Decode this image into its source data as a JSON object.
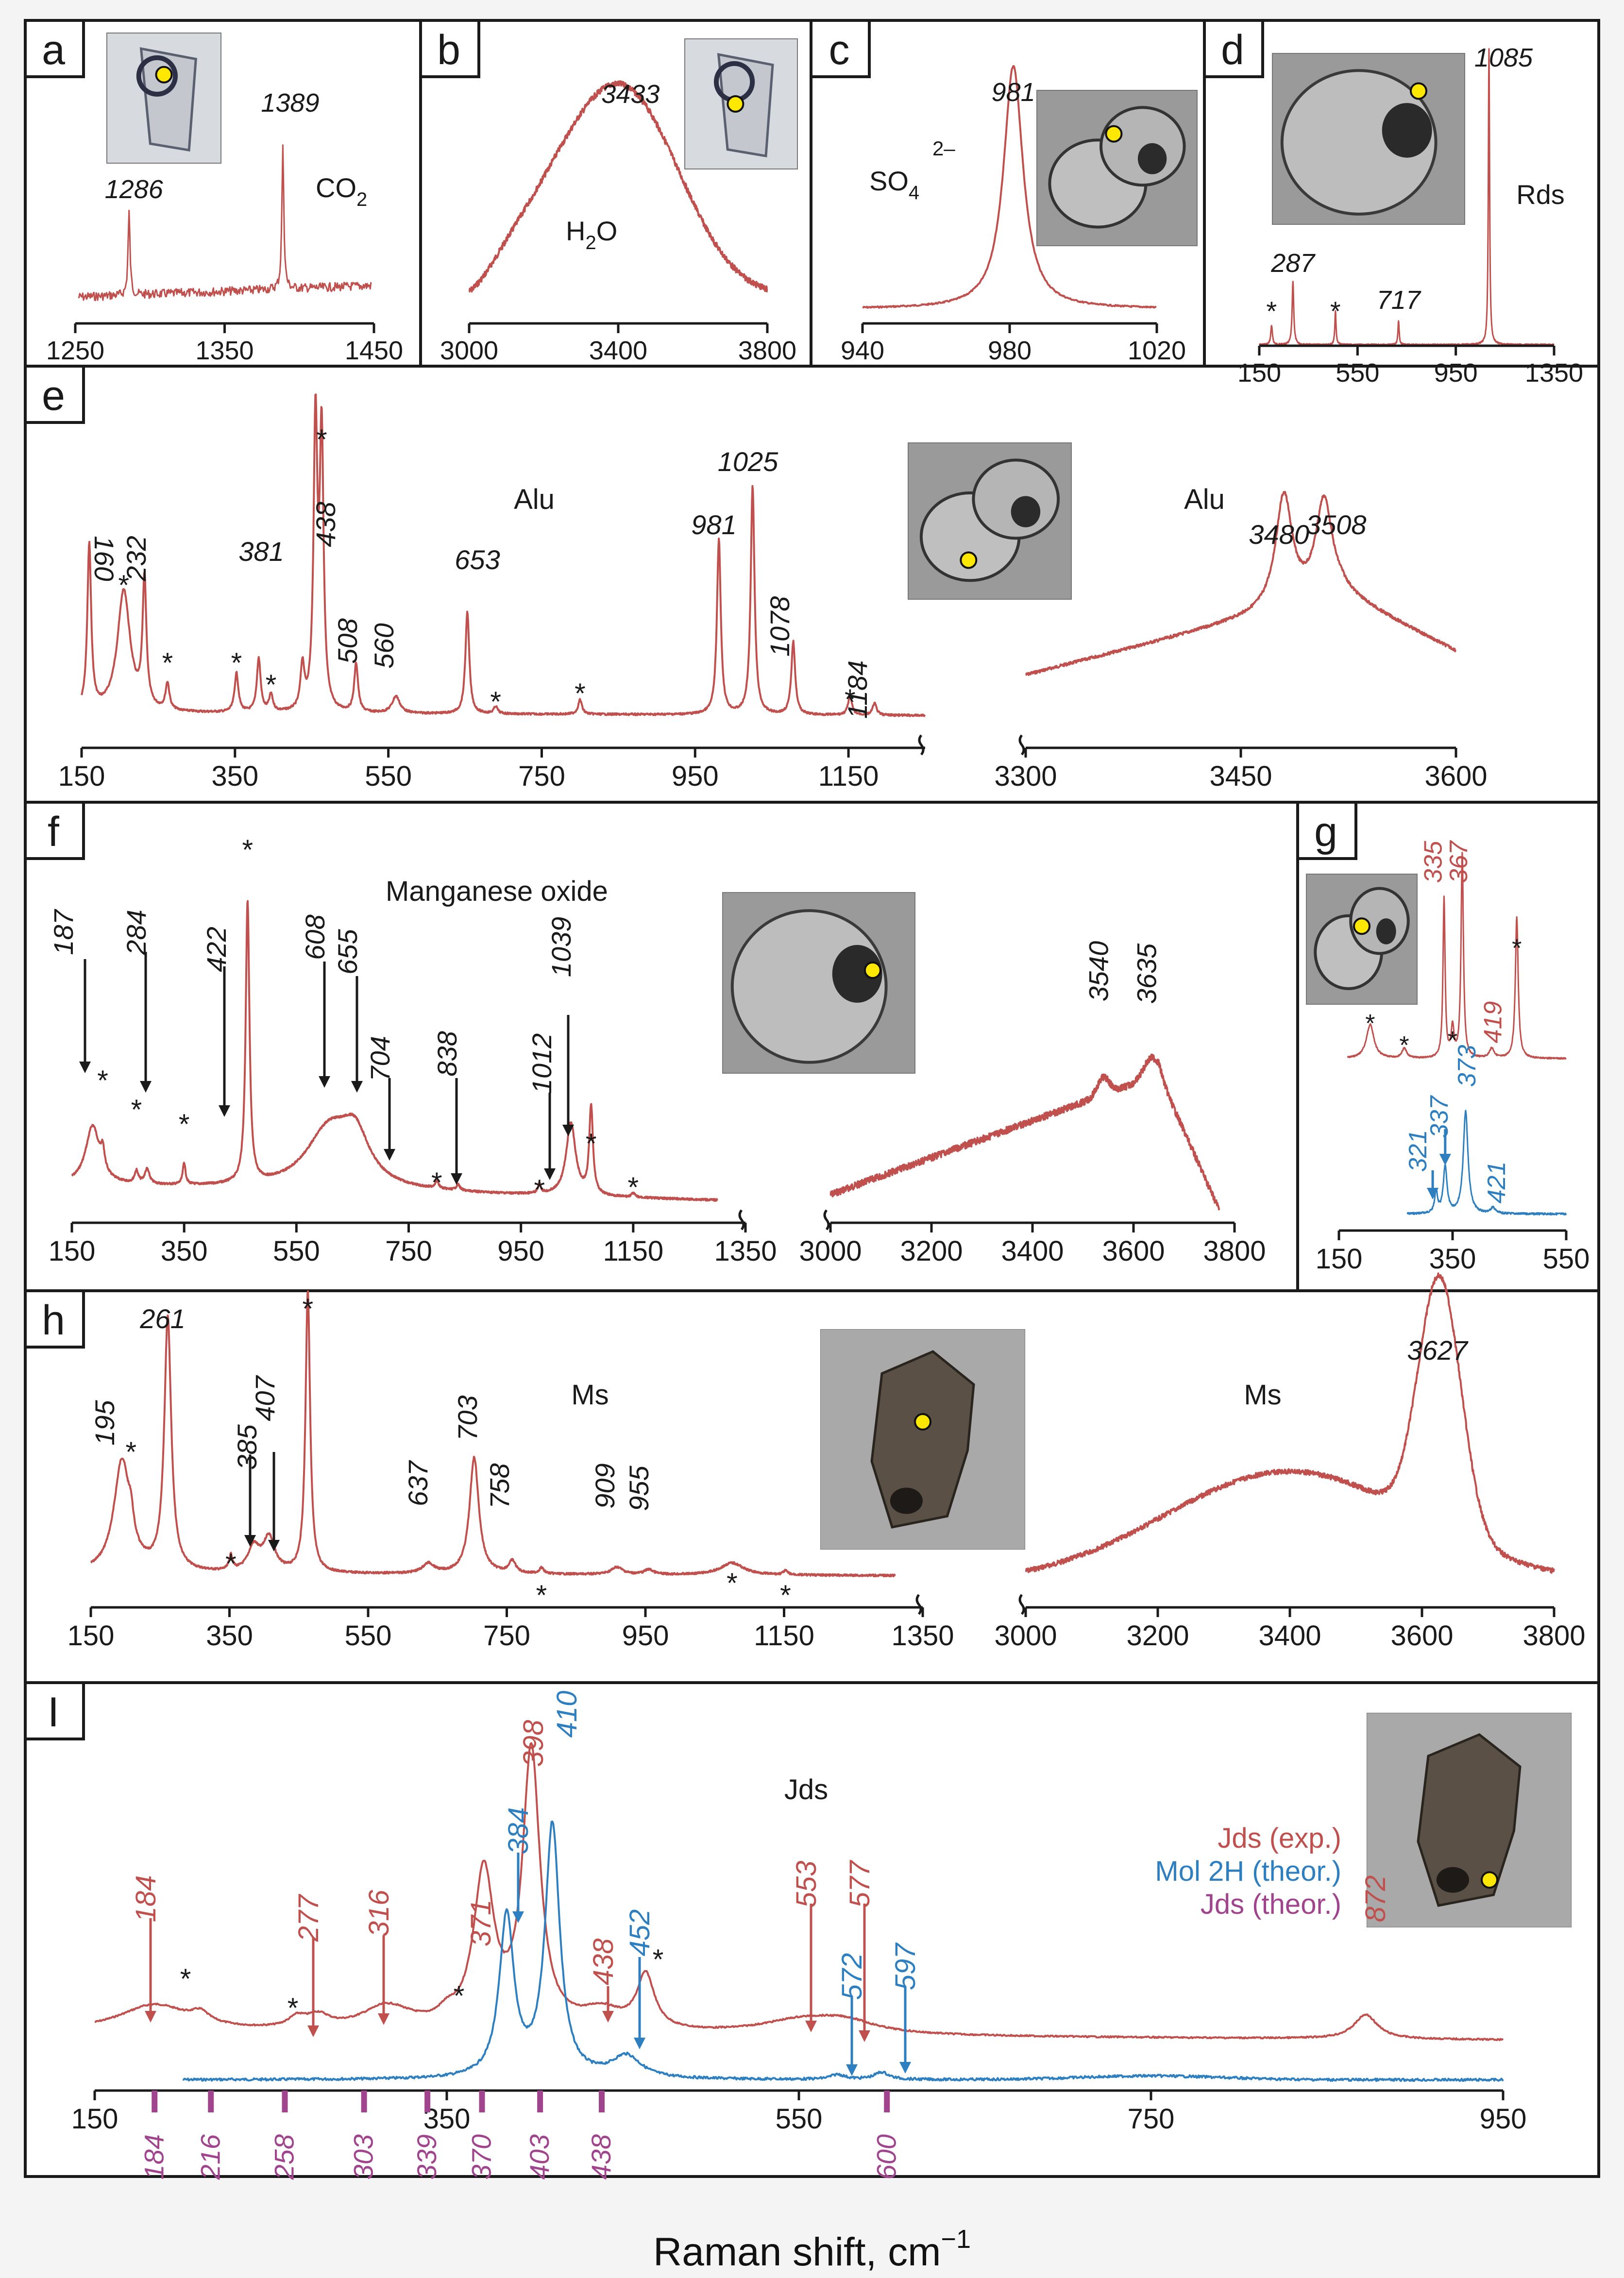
{
  "figure": {
    "xlabel": "Raman shift, cm",
    "xlabel_sup": "−1"
  },
  "colors": {
    "exp": "#c0504d",
    "blue": "#2e7fc0",
    "magenta": "#a0448e",
    "axis": "#1a1a1a"
  },
  "chart_data": [
    {
      "id": "a",
      "type": "line",
      "panel_label": "a",
      "label": "CO",
      "label_sub": "2",
      "xlim": [
        1250,
        1450
      ],
      "xticks": [
        1250,
        1350,
        1450
      ],
      "peaks": [
        {
          "x": 1286,
          "label": "1286"
        },
        {
          "x": 1389,
          "label": "1389"
        }
      ],
      "markers": [],
      "inset": {
        "image": "fluid inclusion",
        "spot": "yellow"
      }
    },
    {
      "id": "b",
      "type": "line",
      "panel_label": "b",
      "label": "H",
      "label_sub": "2",
      "label_after": "O",
      "xlim": [
        3000,
        3800
      ],
      "xticks": [
        3000,
        3400,
        3800
      ],
      "peaks": [
        {
          "x": 3433,
          "label": "3433"
        }
      ],
      "inset": {
        "image": "fluid inclusion",
        "spot": "yellow"
      }
    },
    {
      "id": "c",
      "type": "line",
      "panel_label": "c",
      "label": "SO",
      "label_sub": "4",
      "label_sup": "2–",
      "xlim": [
        940,
        1020
      ],
      "xticks": [
        940,
        980,
        1020
      ],
      "peaks": [
        {
          "x": 981,
          "label": "981"
        }
      ],
      "inset": {
        "image": "melt inclusion",
        "spot": "yellow"
      }
    },
    {
      "id": "d",
      "type": "line",
      "panel_label": "d",
      "label": "Rds",
      "xlim": [
        150,
        1350
      ],
      "xticks": [
        150,
        550,
        950,
        1350
      ],
      "peaks": [
        {
          "x": 287,
          "label": "287"
        },
        {
          "x": 717,
          "label": "717"
        },
        {
          "x": 1085,
          "label": "1085"
        }
      ],
      "markers": [
        200,
        460
      ],
      "inset": {
        "image": "inclusion",
        "spot": "yellow"
      }
    },
    {
      "id": "e",
      "type": "line",
      "panel_label": "e",
      "label": "Alu",
      "label_right": "Alu",
      "xlim": [
        150,
        1250
      ],
      "xticks": [
        150,
        350,
        550,
        750,
        950,
        1150
      ],
      "xlim_right": [
        3300,
        3600
      ],
      "xticks_right": [
        3300,
        3450,
        3600
      ],
      "peaks": [
        {
          "x": 160,
          "label": "160"
        },
        {
          "x": 232,
          "label": "232"
        },
        {
          "x": 381,
          "label": "381"
        },
        {
          "x": 438,
          "label": "438"
        },
        {
          "x": 508,
          "label": "508"
        },
        {
          "x": 560,
          "label": "560"
        },
        {
          "x": 653,
          "label": "653"
        },
        {
          "x": 981,
          "label": "981"
        },
        {
          "x": 1025,
          "label": "1025"
        },
        {
          "x": 1078,
          "label": "1078"
        },
        {
          "x": 1184,
          "label": "1184"
        }
      ],
      "peaks_right": [
        {
          "x": 3480,
          "label": "3480"
        },
        {
          "x": 3508,
          "label": "3508"
        }
      ],
      "markers": [
        205,
        262,
        352,
        397,
        463,
        690,
        800,
        1152
      ],
      "inset": {
        "image": "melt inclusion",
        "spot": "yellow"
      }
    },
    {
      "id": "f",
      "type": "line",
      "panel_label": "f",
      "label": "Manganese oxide",
      "xlim": [
        150,
        1350
      ],
      "xticks": [
        150,
        350,
        550,
        750,
        950,
        1150,
        1350
      ],
      "xlim_right": [
        3000,
        3800
      ],
      "xticks_right": [
        3000,
        3200,
        3400,
        3600,
        3800
      ],
      "peaks": [
        {
          "x": 187,
          "label": "187"
        },
        {
          "x": 284,
          "label": "284"
        },
        {
          "x": 422,
          "label": "422"
        },
        {
          "x": 608,
          "label": "608"
        },
        {
          "x": 655,
          "label": "655"
        },
        {
          "x": 704,
          "label": "704"
        },
        {
          "x": 838,
          "label": "838"
        },
        {
          "x": 1012,
          "label": "1012"
        },
        {
          "x": 1039,
          "label": "1039"
        }
      ],
      "peaks_right": [
        {
          "x": 3540,
          "label": "3540"
        },
        {
          "x": 3635,
          "label": "3635"
        }
      ],
      "markers": [
        205,
        265,
        350,
        463,
        800,
        983,
        1075,
        1150
      ],
      "inset": {
        "image": "inclusion",
        "spot": "yellow"
      }
    },
    {
      "id": "g",
      "type": "line",
      "panel_label": "g",
      "xlim": [
        150,
        550
      ],
      "xticks": [
        150,
        350,
        550
      ],
      "series": [
        {
          "name": "exp",
          "peaks": [
            {
              "x": 335,
              "label": "335"
            },
            {
              "x": 367,
              "label": "367"
            },
            {
              "x": 419,
              "label": "419"
            }
          ],
          "markers": [
            205,
            265,
            350,
            463
          ]
        },
        {
          "name": "theor",
          "peaks": [
            {
              "x": 321,
              "label": "321"
            },
            {
              "x": 337,
              "label": "337"
            },
            {
              "x": 373,
              "label": "373"
            },
            {
              "x": 421,
              "label": "421"
            }
          ]
        }
      ],
      "inset": {
        "image": "melt inclusion",
        "spot": "yellow"
      }
    },
    {
      "id": "h",
      "type": "line",
      "panel_label": "h",
      "label": "Ms",
      "label_right": "Ms",
      "xlim": [
        150,
        1350
      ],
      "xticks": [
        150,
        350,
        550,
        750,
        950,
        1150,
        1350
      ],
      "xlim_right": [
        3000,
        3800
      ],
      "xticks_right": [
        3000,
        3200,
        3400,
        3600,
        3800
      ],
      "peaks": [
        {
          "x": 195,
          "label": "195"
        },
        {
          "x": 261,
          "label": "261"
        },
        {
          "x": 385,
          "label": "385"
        },
        {
          "x": 407,
          "label": "407"
        },
        {
          "x": 637,
          "label": "637"
        },
        {
          "x": 703,
          "label": "703"
        },
        {
          "x": 758,
          "label": "758"
        },
        {
          "x": 909,
          "label": "909"
        },
        {
          "x": 955,
          "label": "955"
        }
      ],
      "peaks_right": [
        {
          "x": 3627,
          "label": "3627"
        }
      ],
      "markers": [
        208,
        352,
        463,
        800,
        1075,
        1152
      ],
      "inset": {
        "image": "inclusion",
        "spot": "yellow"
      }
    },
    {
      "id": "i",
      "type": "line",
      "panel_label": "I",
      "label": "Jds",
      "xlim": [
        150,
        950
      ],
      "xticks": [
        150,
        350,
        550,
        750,
        950
      ],
      "legend": [
        {
          "name": "Jds (exp.)",
          "color": "#c0504d"
        },
        {
          "name": "Mol 2H (theor.)",
          "color": "#2e7fc0"
        },
        {
          "name": "Jds (theor.)",
          "color": "#a0448e"
        }
      ],
      "peaks_exp": [
        {
          "x": 184,
          "label": "184"
        },
        {
          "x": 277,
          "label": "277"
        },
        {
          "x": 316,
          "label": "316"
        },
        {
          "x": 371,
          "label": "371"
        },
        {
          "x": 398,
          "label": "398"
        },
        {
          "x": 438,
          "label": "438"
        },
        {
          "x": 553,
          "label": "553"
        },
        {
          "x": 577,
          "label": "577"
        },
        {
          "x": 872,
          "label": "872"
        }
      ],
      "peaks_blue": [
        {
          "x": 384,
          "label": "384"
        },
        {
          "x": 410,
          "label": "410"
        },
        {
          "x": 452,
          "label": "452"
        },
        {
          "x": 572,
          "label": "572"
        },
        {
          "x": 597,
          "label": "597"
        }
      ],
      "theor_lines": [
        {
          "x": 184,
          "label": "184"
        },
        {
          "x": 216,
          "label": "216"
        },
        {
          "x": 258,
          "label": "258"
        },
        {
          "x": 303,
          "label": "303"
        },
        {
          "x": 339,
          "label": "339"
        },
        {
          "x": 370,
          "label": "370"
        },
        {
          "x": 403,
          "label": "403"
        },
        {
          "x": 438,
          "label": "438"
        },
        {
          "x": 600,
          "label": "600"
        }
      ],
      "markers": [
        210,
        265,
        350,
        463
      ],
      "inset": {
        "image": "inclusion",
        "spot": "yellow"
      }
    }
  ]
}
